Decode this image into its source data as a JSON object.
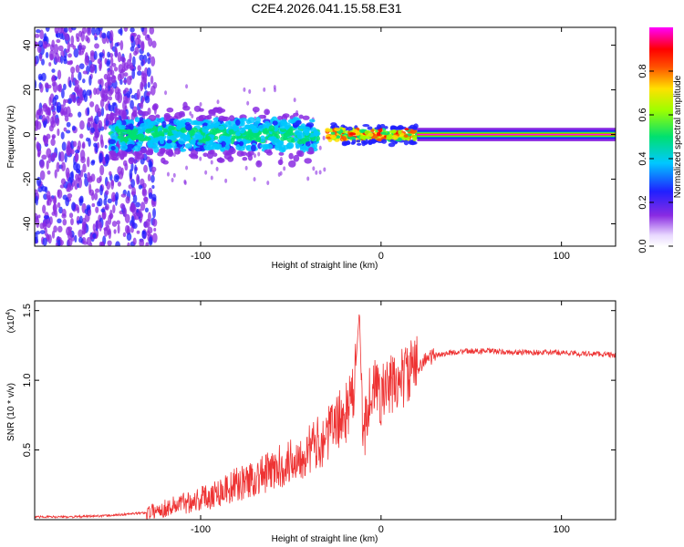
{
  "title": "C2E4.2026.041.15.58.E31",
  "chart_data": [
    {
      "type": "heatmap",
      "name": "spectrogram",
      "xlabel": "Height of straight line (km)",
      "ylabel": "Frequency (Hz)",
      "xlim": [
        -192,
        130
      ],
      "ylim": [
        -50,
        48
      ],
      "xticks": [
        -100,
        0,
        100
      ],
      "yticks": [
        -40,
        -20,
        0,
        20,
        40
      ],
      "colorbar": {
        "label": "Normalized spectral amplitude",
        "range": [
          0,
          1
        ],
        "ticks": [
          0.0,
          0.2,
          0.4,
          0.6,
          0.8
        ]
      },
      "regions": [
        {
          "x": [
            -192,
            -125
          ],
          "description": "broadband scattered noise across full frequency range"
        },
        {
          "x": [
            -150,
            -35
          ],
          "freq_center": 0,
          "freq_spread": 12,
          "amplitude": "0.3-0.5"
        },
        {
          "x": [
            -30,
            20
          ],
          "freq_center": 0,
          "freq_spread": 5,
          "amplitude": "0.5-0.9"
        },
        {
          "x": [
            20,
            130
          ],
          "freq_center": 0,
          "freq_spread": 2,
          "amplitude": "0.9-1.0"
        }
      ]
    },
    {
      "type": "line",
      "name": "snr",
      "xlabel": "Height of straight line (km)",
      "ylabel": "SNR (10 * v/v)",
      "yscale_label": "(x10",
      "yscale_exp": "4",
      "xlim": [
        -192,
        130
      ],
      "ylim": [
        0,
        1.57
      ],
      "xticks": [
        -100,
        0,
        100
      ],
      "yticks": [
        0.5,
        1.0,
        1.5
      ],
      "ytick_labels": [
        "0.5",
        "1.0",
        "1.5"
      ],
      "color": "#ee3333",
      "x": [
        -192,
        -170,
        -150,
        -130,
        -120,
        -110,
        -100,
        -90,
        -80,
        -70,
        -60,
        -50,
        -40,
        -30,
        -25,
        -20,
        -15,
        -12,
        -10,
        -8,
        -5,
        0,
        5,
        10,
        15,
        20,
        25,
        30,
        40,
        50,
        60,
        70,
        80,
        90,
        100,
        110,
        120,
        130
      ],
      "y": [
        0.02,
        0.02,
        0.03,
        0.05,
        0.08,
        0.12,
        0.15,
        0.2,
        0.25,
        0.3,
        0.35,
        0.42,
        0.5,
        0.6,
        0.7,
        0.75,
        0.9,
        1.5,
        0.55,
        0.8,
        0.95,
        0.9,
        0.95,
        1.0,
        1.05,
        1.1,
        1.15,
        1.18,
        1.2,
        1.21,
        1.21,
        1.2,
        1.2,
        1.2,
        1.2,
        1.19,
        1.19,
        1.18
      ]
    }
  ]
}
